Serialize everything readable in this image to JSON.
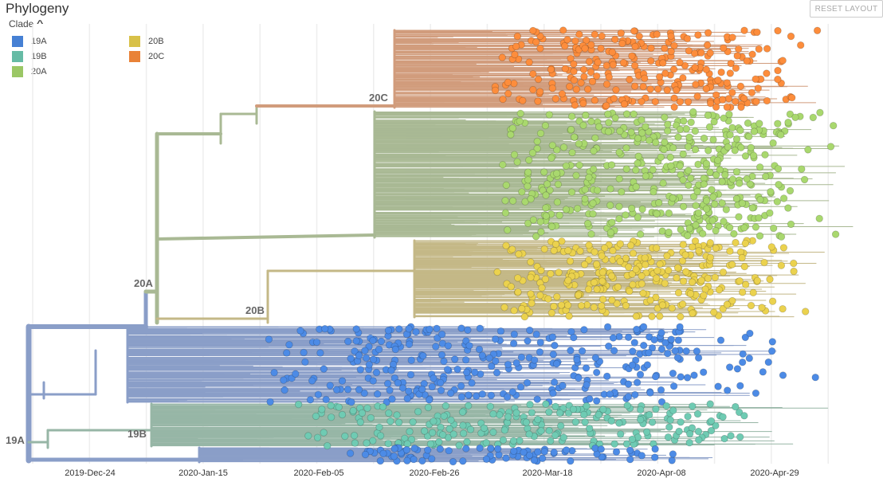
{
  "header": {
    "title": "Phylogeny",
    "reset_label": "RESET LAYOUT"
  },
  "legend": {
    "title": "Clade",
    "toggle_icon": "chevron-up-icon",
    "items": [
      {
        "label": "19A",
        "color": "#4c8be6"
      },
      {
        "label": "19B",
        "color": "#6fcbb3"
      },
      {
        "label": "20A",
        "color": "#a9d86e"
      },
      {
        "label": "20B",
        "color": "#ebd24e"
      },
      {
        "label": "20C",
        "color": "#fd8d3c"
      }
    ]
  },
  "branch_colors": {
    "19A": "#8a9ec8",
    "19B": "#97b6a6",
    "20A": "#a9b994",
    "20B": "#c4b887",
    "20C": "#d19c7c"
  },
  "node_labels": [
    "19A",
    "19B",
    "20A",
    "20B",
    "20C"
  ],
  "axis": {
    "ticks": [
      "2019-Dec-24",
      "2020-Jan-15",
      "2020-Feb-05",
      "2020-Feb-26",
      "2020-Mar-18",
      "2020-Apr-08",
      "2020-Apr-29"
    ]
  }
}
